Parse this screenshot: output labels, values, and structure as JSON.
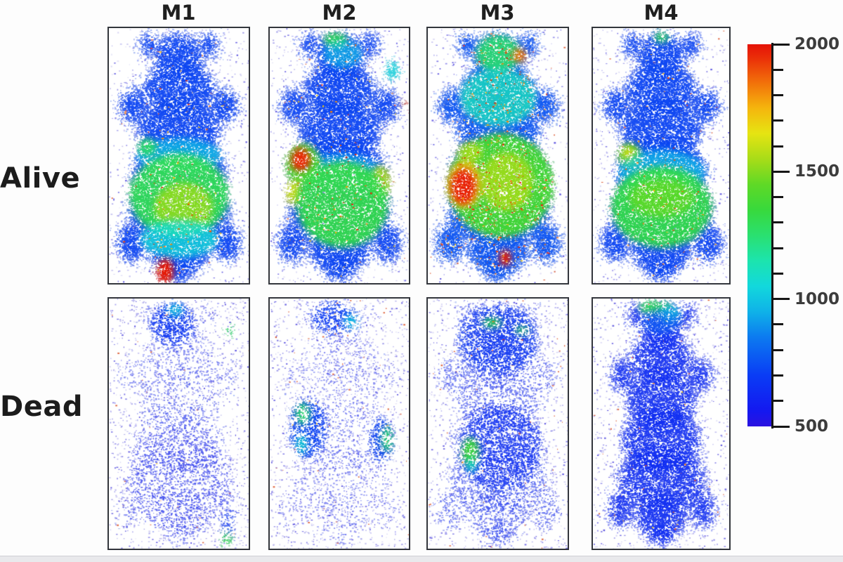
{
  "figure_title": "",
  "chart_data": {
    "type": "heatmap",
    "title": "",
    "columns": [
      "M1",
      "M2",
      "M3",
      "M4"
    ],
    "rows": [
      "Alive",
      "Dead"
    ],
    "value_scale": {
      "min": 500,
      "max": 2000,
      "major_ticks": [
        2000,
        1500,
        1000,
        500
      ],
      "tick_labels": [
        "2000",
        "1500",
        "1000",
        "500"
      ],
      "minor_tick_step": 100,
      "orientation": "vertical",
      "colormap": [
        {
          "v": 500,
          "c": "#2b12e0"
        },
        {
          "v": 560,
          "c": "#1418f0"
        },
        {
          "v": 700,
          "c": "#0a3cf5"
        },
        {
          "v": 850,
          "c": "#0c7af0"
        },
        {
          "v": 950,
          "c": "#0fb2e8"
        },
        {
          "v": 1050,
          "c": "#12d8dc"
        },
        {
          "v": 1150,
          "c": "#1ce4ae"
        },
        {
          "v": 1250,
          "c": "#2ae070"
        },
        {
          "v": 1350,
          "c": "#38d93c"
        },
        {
          "v": 1450,
          "c": "#5fd926"
        },
        {
          "v": 1550,
          "c": "#a8dc18"
        },
        {
          "v": 1650,
          "c": "#e6e412"
        },
        {
          "v": 1750,
          "c": "#f5b50d"
        },
        {
          "v": 1850,
          "c": "#f2700a"
        },
        {
          "v": 1950,
          "c": "#ea2c08"
        },
        {
          "v": 2000,
          "c": "#e51207"
        }
      ]
    },
    "speckle_palette": [
      "#2e22d8",
      "#4a42dd",
      "#7a74e2",
      "#9d98e8",
      "#b9b5ec"
    ],
    "hot_speck_color": "#d84315",
    "mouse_silhouette": [
      [
        0.5,
        0.115,
        0.175,
        0.095
      ],
      [
        0.285,
        0.065,
        0.065,
        0.045
      ],
      [
        0.715,
        0.065,
        0.065,
        0.045
      ],
      [
        0.5,
        0.24,
        0.26,
        0.1
      ],
      [
        0.175,
        0.305,
        0.1,
        0.065
      ],
      [
        0.825,
        0.305,
        0.1,
        0.065
      ],
      [
        0.5,
        0.4,
        0.295,
        0.125
      ],
      [
        0.5,
        0.565,
        0.33,
        0.135
      ],
      [
        0.5,
        0.72,
        0.36,
        0.13
      ],
      [
        0.16,
        0.84,
        0.105,
        0.075
      ],
      [
        0.84,
        0.84,
        0.105,
        0.075
      ],
      [
        0.5,
        0.87,
        0.22,
        0.09
      ],
      [
        0.5,
        0.945,
        0.1,
        0.045
      ]
    ],
    "panels": [
      {
        "row": "Alive",
        "column": "M1",
        "summary": "Whole-body signal; green abdominal region with yellow-green core; red hotspot at tail base",
        "body": {
          "value": 720,
          "alpha": 0.88,
          "scale_x": 1
        },
        "speckle": {
          "density": 0.5,
          "bg_density": 0.012,
          "hot_fraction": 0.012
        },
        "regions": [
          {
            "x": 0.5,
            "y": 0.5,
            "rx": 0.3,
            "ry": 0.07,
            "value": 1000,
            "alpha": 0.75
          },
          {
            "x": 0.5,
            "y": 0.655,
            "rx": 0.355,
            "ry": 0.165,
            "value": 1300,
            "alpha": 0.95
          },
          {
            "x": 0.53,
            "y": 0.7,
            "rx": 0.21,
            "ry": 0.095,
            "value": 1520,
            "alpha": 0.88
          },
          {
            "x": 0.27,
            "y": 0.465,
            "rx": 0.065,
            "ry": 0.035,
            "value": 1280,
            "alpha": 0.9
          },
          {
            "x": 0.5,
            "y": 0.825,
            "rx": 0.28,
            "ry": 0.075,
            "value": 1060,
            "alpha": 0.8
          },
          {
            "x": 0.4,
            "y": 0.95,
            "rx": 0.06,
            "ry": 0.048,
            "value": 1980,
            "alpha": 1.0
          }
        ]
      },
      {
        "row": "Alive",
        "column": "M2",
        "summary": "Green abdomen; intense red hotspot on upper-left abdomen; yellow flank patches; green spot on head",
        "body": {
          "value": 720,
          "alpha": 0.88,
          "scale_x": 1
        },
        "speckle": {
          "density": 0.5,
          "bg_density": 0.012,
          "hot_fraction": 0.012
        },
        "regions": [
          {
            "x": 0.47,
            "y": 0.045,
            "rx": 0.085,
            "ry": 0.03,
            "value": 1320,
            "alpha": 0.9
          },
          {
            "x": 0.52,
            "y": 0.1,
            "rx": 0.14,
            "ry": 0.055,
            "value": 1020,
            "alpha": 0.6
          },
          {
            "x": 0.88,
            "y": 0.165,
            "rx": 0.055,
            "ry": 0.04,
            "value": 1050,
            "alpha": 0.7
          },
          {
            "x": 0.5,
            "y": 0.56,
            "rx": 0.3,
            "ry": 0.07,
            "value": 1000,
            "alpha": 0.6
          },
          {
            "x": 0.24,
            "y": 0.535,
            "rx": 0.125,
            "ry": 0.085,
            "value": 1420,
            "alpha": 0.95
          },
          {
            "x": 0.22,
            "y": 0.515,
            "rx": 0.07,
            "ry": 0.045,
            "value": 1950,
            "alpha": 1.0
          },
          {
            "x": 0.18,
            "y": 0.645,
            "rx": 0.065,
            "ry": 0.05,
            "value": 1600,
            "alpha": 0.88
          },
          {
            "x": 0.79,
            "y": 0.6,
            "rx": 0.075,
            "ry": 0.065,
            "value": 1560,
            "alpha": 0.88
          },
          {
            "x": 0.52,
            "y": 0.69,
            "rx": 0.33,
            "ry": 0.17,
            "value": 1320,
            "alpha": 0.95
          },
          {
            "x": 0.97,
            "y": 0.295,
            "rx": 0.015,
            "ry": 0.012,
            "value": 1900,
            "alpha": 0.95
          }
        ]
      },
      {
        "row": "Alive",
        "column": "M3",
        "summary": "Strongest signal; broad green abdomen with red speckles; large red hotspot on left abdomen; red spot at tail base; warm spot on head",
        "body": {
          "value": 760,
          "alpha": 0.9,
          "scale_x": 1
        },
        "speckle": {
          "density": 0.52,
          "bg_density": 0.012,
          "hot_fraction": 0.035
        },
        "regions": [
          {
            "x": 0.5,
            "y": 0.1,
            "rx": 0.16,
            "ry": 0.075,
            "value": 1260,
            "alpha": 0.9
          },
          {
            "x": 0.65,
            "y": 0.105,
            "rx": 0.05,
            "ry": 0.028,
            "value": 1850,
            "alpha": 0.95
          },
          {
            "x": 0.5,
            "y": 0.27,
            "rx": 0.27,
            "ry": 0.115,
            "value": 1120,
            "alpha": 0.8
          },
          {
            "x": 0.52,
            "y": 0.615,
            "rx": 0.375,
            "ry": 0.205,
            "value": 1380,
            "alpha": 0.97
          },
          {
            "x": 0.56,
            "y": 0.6,
            "rx": 0.19,
            "ry": 0.115,
            "value": 1540,
            "alpha": 0.88
          },
          {
            "x": 0.3,
            "y": 0.485,
            "rx": 0.09,
            "ry": 0.04,
            "value": 1560,
            "alpha": 0.8
          },
          {
            "x": 0.26,
            "y": 0.61,
            "rx": 0.125,
            "ry": 0.095,
            "value": 1720,
            "alpha": 0.85
          },
          {
            "x": 0.25,
            "y": 0.62,
            "rx": 0.09,
            "ry": 0.07,
            "value": 1970,
            "alpha": 1.0
          },
          {
            "x": 0.55,
            "y": 0.9,
            "rx": 0.042,
            "ry": 0.032,
            "value": 1970,
            "alpha": 1.0
          }
        ]
      },
      {
        "row": "Alive",
        "column": "M4",
        "summary": "Blue body with green abdominal band; yellow-green hotspot on left flank; small green spot at head tip",
        "body": {
          "value": 720,
          "alpha": 0.88,
          "scale_x": 1
        },
        "speckle": {
          "density": 0.5,
          "bg_density": 0.012,
          "hot_fraction": 0.008
        },
        "regions": [
          {
            "x": 0.5,
            "y": 0.035,
            "rx": 0.055,
            "ry": 0.022,
            "value": 1300,
            "alpha": 0.85
          },
          {
            "x": 0.27,
            "y": 0.5,
            "rx": 0.085,
            "ry": 0.05,
            "value": 1460,
            "alpha": 0.95
          },
          {
            "x": 0.26,
            "y": 0.495,
            "rx": 0.042,
            "ry": 0.028,
            "value": 1660,
            "alpha": 0.9
          },
          {
            "x": 0.5,
            "y": 0.565,
            "rx": 0.32,
            "ry": 0.09,
            "value": 1010,
            "alpha": 0.7
          },
          {
            "x": 0.5,
            "y": 0.7,
            "rx": 0.37,
            "ry": 0.16,
            "value": 1320,
            "alpha": 0.95
          },
          {
            "x": 0.5,
            "y": 0.665,
            "rx": 0.24,
            "ry": 0.075,
            "value": 1450,
            "alpha": 0.85
          }
        ]
      },
      {
        "row": "Dead",
        "column": "M1",
        "summary": "Very sparse residual speckle; faint blue head patch; small green foci at right shoulder and lower right",
        "body": {
          "value": 620,
          "alpha": 0.22,
          "scale_x": 1
        },
        "speckle": {
          "density": 0.26,
          "bg_density": 0.02,
          "hot_fraction": 0.004
        },
        "regions": [
          {
            "x": 0.45,
            "y": 0.1,
            "rx": 0.16,
            "ry": 0.085,
            "value": 680,
            "alpha": 0.8
          },
          {
            "x": 0.47,
            "y": 0.045,
            "rx": 0.06,
            "ry": 0.025,
            "value": 1050,
            "alpha": 0.8
          },
          {
            "x": 0.86,
            "y": 0.125,
            "rx": 0.033,
            "ry": 0.025,
            "value": 1280,
            "alpha": 0.95
          },
          {
            "x": 0.5,
            "y": 0.72,
            "rx": 0.38,
            "ry": 0.22,
            "value": 600,
            "alpha": 0.22
          },
          {
            "x": 0.85,
            "y": 0.9,
            "rx": 0.05,
            "ry": 0.06,
            "value": 700,
            "alpha": 0.5
          },
          {
            "x": 0.84,
            "y": 0.962,
            "rx": 0.035,
            "ry": 0.028,
            "value": 1320,
            "alpha": 0.95
          }
        ]
      },
      {
        "row": "Dead",
        "column": "M2",
        "summary": "Sparse speckle; blue hip clusters with green foci on both flanks; faint blue head patch",
        "body": {
          "value": 620,
          "alpha": 0.16,
          "scale_x": 1
        },
        "speckle": {
          "density": 0.26,
          "bg_density": 0.02,
          "hot_fraction": 0.003
        },
        "regions": [
          {
            "x": 0.45,
            "y": 0.075,
            "rx": 0.16,
            "ry": 0.065,
            "value": 700,
            "alpha": 0.75
          },
          {
            "x": 0.58,
            "y": 0.09,
            "rx": 0.05,
            "ry": 0.03,
            "value": 1020,
            "alpha": 0.85
          },
          {
            "x": 0.27,
            "y": 0.52,
            "rx": 0.135,
            "ry": 0.115,
            "value": 720,
            "alpha": 0.85
          },
          {
            "x": 0.235,
            "y": 0.46,
            "rx": 0.05,
            "ry": 0.042,
            "value": 1270,
            "alpha": 0.97
          },
          {
            "x": 0.225,
            "y": 0.58,
            "rx": 0.042,
            "ry": 0.04,
            "value": 1080,
            "alpha": 0.85
          },
          {
            "x": 0.8,
            "y": 0.565,
            "rx": 0.085,
            "ry": 0.09,
            "value": 720,
            "alpha": 0.8
          },
          {
            "x": 0.84,
            "y": 0.56,
            "rx": 0.038,
            "ry": 0.05,
            "value": 1270,
            "alpha": 0.95
          }
        ]
      },
      {
        "row": "Dead",
        "column": "M3",
        "summary": "Moderate sparse speckle; green focus on left abdomen; green streaks near head; dense blue shoulders",
        "body": {
          "value": 640,
          "alpha": 0.34,
          "scale_x": 1
        },
        "speckle": {
          "density": 0.34,
          "bg_density": 0.02,
          "hot_fraction": 0.003
        },
        "regions": [
          {
            "x": 0.5,
            "y": 0.16,
            "rx": 0.29,
            "ry": 0.135,
            "value": 680,
            "alpha": 0.7
          },
          {
            "x": 0.455,
            "y": 0.095,
            "rx": 0.07,
            "ry": 0.02,
            "value": 1320,
            "alpha": 0.9
          },
          {
            "x": 0.67,
            "y": 0.125,
            "rx": 0.05,
            "ry": 0.016,
            "value": 1320,
            "alpha": 0.85
          },
          {
            "x": 0.52,
            "y": 0.6,
            "rx": 0.29,
            "ry": 0.175,
            "value": 660,
            "alpha": 0.55
          },
          {
            "x": 0.3,
            "y": 0.61,
            "rx": 0.062,
            "ry": 0.055,
            "value": 1360,
            "alpha": 0.97
          },
          {
            "x": 0.31,
            "y": 0.665,
            "rx": 0.04,
            "ry": 0.03,
            "value": 1100,
            "alpha": 0.8
          }
        ]
      },
      {
        "row": "Dead",
        "column": "M4",
        "summary": "Dense uniform blue speckle over whole body; cyan-green patch at top of head; no abdominal signal",
        "body": {
          "value": 640,
          "alpha": 0.78,
          "scale_x": 0.88
        },
        "speckle": {
          "density": 0.5,
          "bg_density": 0.018,
          "hot_fraction": 0.003
        },
        "regions": [
          {
            "x": 0.45,
            "y": 0.035,
            "rx": 0.115,
            "ry": 0.028,
            "value": 1300,
            "alpha": 0.9
          },
          {
            "x": 0.56,
            "y": 0.06,
            "rx": 0.075,
            "ry": 0.032,
            "value": 1060,
            "alpha": 0.85
          },
          {
            "x": 0.5,
            "y": 0.09,
            "rx": 0.14,
            "ry": 0.05,
            "value": 800,
            "alpha": 0.6
          }
        ]
      }
    ]
  }
}
